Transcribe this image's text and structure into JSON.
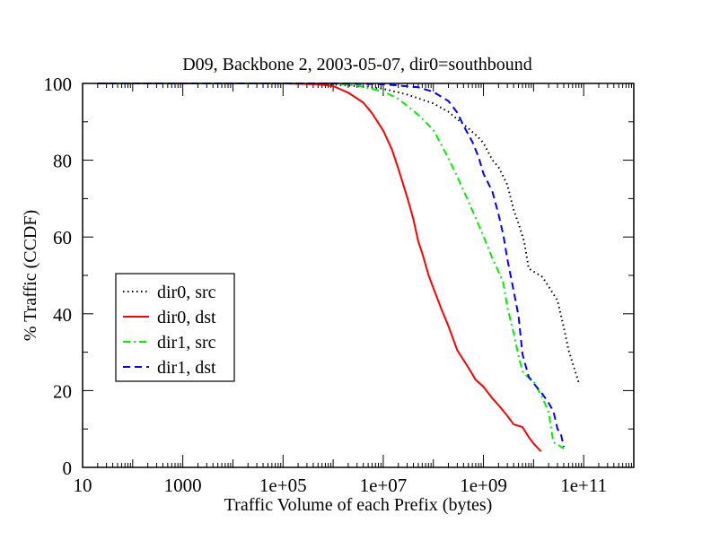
{
  "chart_data": {
    "type": "line",
    "title": "D09, Backbone 2, 2003-05-07, dir0=southbound",
    "xlabel": "Traffic Volume of each Prefix (bytes)",
    "ylabel": "% Traffic (CCDF)",
    "x_scale": "log",
    "xlim": [
      10,
      1000000000000.0
    ],
    "ylim": [
      0,
      100
    ],
    "x_ticks": [
      {
        "v": 10,
        "label": "10"
      },
      {
        "v": 1000,
        "label": "1000"
      },
      {
        "v": 100000,
        "label": "1e+05"
      },
      {
        "v": 10000000,
        "label": "1e+07"
      },
      {
        "v": 1000000000,
        "label": "1e+09"
      },
      {
        "v": 100000000000,
        "label": "1e+11"
      }
    ],
    "y_ticks": [
      {
        "v": 0,
        "label": "0"
      },
      {
        "v": 20,
        "label": "20"
      },
      {
        "v": 40,
        "label": "40"
      },
      {
        "v": 60,
        "label": "60"
      },
      {
        "v": 80,
        "label": "80"
      },
      {
        "v": 100,
        "label": "100"
      }
    ],
    "grid": false,
    "legend_position": "left-middle",
    "series": [
      {
        "name": "dir0, src",
        "color": "#000000",
        "dash": "dotted",
        "points": [
          [
            20,
            100
          ],
          [
            100000.0,
            100
          ],
          [
            1000000.0,
            99.7
          ],
          [
            3000000.0,
            99.3
          ],
          [
            10000000.0,
            98.6
          ],
          [
            30000000.0,
            97.1
          ],
          [
            100000000.0,
            94.8
          ],
          [
            200000000.0,
            92.6
          ],
          [
            500000000.0,
            88.3
          ],
          [
            800000000.0,
            85.9
          ],
          [
            1000000000.0,
            84.5
          ],
          [
            1500000000.0,
            80.1
          ],
          [
            2000000000.0,
            78.2
          ],
          [
            3000000000.0,
            73.6
          ],
          [
            4000000000.0,
            67.1
          ],
          [
            5000000000.0,
            63.5
          ],
          [
            6500000000.0,
            58.8
          ],
          [
            8000000000.0,
            51.8
          ],
          [
            15000000000.0,
            49.6
          ],
          [
            30000000000.0,
            43.5
          ],
          [
            40000000000.0,
            36.5
          ],
          [
            50000000000.0,
            30.5
          ],
          [
            80000000000.0,
            22
          ]
        ]
      },
      {
        "name": "dir0, dst",
        "color": "#ff0000",
        "dash": "solid",
        "points": [
          [
            20,
            100
          ],
          [
            100000.0,
            100
          ],
          [
            500000.0,
            99.8
          ],
          [
            1000000.0,
            99.3
          ],
          [
            2000000.0,
            97.6
          ],
          [
            4000000.0,
            95.0
          ],
          [
            6000000.0,
            92.2
          ],
          [
            10000000.0,
            87.7
          ],
          [
            15000000.0,
            82.7
          ],
          [
            20000000.0,
            77.8
          ],
          [
            30000000.0,
            70.4
          ],
          [
            40000000.0,
            64.6
          ],
          [
            50000000.0,
            58.8
          ],
          [
            60000000.0,
            55.8
          ],
          [
            80000000.0,
            50.1
          ],
          [
            100000000.0,
            46.7
          ],
          [
            150000000.0,
            40.7
          ],
          [
            200000000.0,
            36.8
          ],
          [
            300000000.0,
            30.5
          ],
          [
            500000000.0,
            26.0
          ],
          [
            700000000.0,
            22.8
          ],
          [
            1000000000.0,
            21.0
          ],
          [
            1500000000.0,
            18.0
          ],
          [
            2000000000.0,
            16.2
          ],
          [
            3000000000.0,
            13.4
          ],
          [
            4000000000.0,
            11.2
          ],
          [
            6000000000.0,
            10.5
          ],
          [
            8000000000.0,
            7.9
          ],
          [
            10000000000.0,
            6.2
          ],
          [
            14000000000.0,
            4.2
          ]
        ]
      },
      {
        "name": "dir1, src",
        "color": "#00ee00",
        "dash": "dashdot",
        "points": [
          [
            20,
            100
          ],
          [
            1000000.0,
            100
          ],
          [
            3000000.0,
            99.5
          ],
          [
            10000000.0,
            97.9
          ],
          [
            20000000.0,
            96.0
          ],
          [
            50000000.0,
            91.8
          ],
          [
            100000000.0,
            87.9
          ],
          [
            150000000.0,
            83.6
          ],
          [
            200000000.0,
            80.5
          ],
          [
            300000000.0,
            75.7
          ],
          [
            500000000.0,
            69.3
          ],
          [
            800000000.0,
            63.2
          ],
          [
            1000000000.0,
            60.2
          ],
          [
            1500000000.0,
            54.5
          ],
          [
            2000000000.0,
            51.0
          ],
          [
            2500000000.0,
            47.9
          ],
          [
            3000000000.0,
            41.7
          ],
          [
            4000000000.0,
            35.0
          ],
          [
            5000000000.0,
            29.1
          ],
          [
            6000000000.0,
            25.0
          ],
          [
            8000000000.0,
            23.3
          ],
          [
            10000000000.0,
            22.5
          ],
          [
            15000000000.0,
            18.1
          ],
          [
            20000000000.0,
            14.4
          ],
          [
            23000000000.0,
            9.2
          ],
          [
            25000000000.0,
            6.5
          ],
          [
            30000000000.0,
            6.0
          ],
          [
            40000000000.0,
            4.9
          ]
        ]
      },
      {
        "name": "dir1, dst",
        "color": "#0000ff",
        "dash": "dashed",
        "points": [
          [
            20,
            100
          ],
          [
            1000000.0,
            100
          ],
          [
            10000000.0,
            99.8
          ],
          [
            50000000.0,
            99.0
          ],
          [
            100000000.0,
            97.8
          ],
          [
            200000000.0,
            95.4
          ],
          [
            300000000.0,
            92.4
          ],
          [
            400000000.0,
            89.0
          ],
          [
            600000000.0,
            84.8
          ],
          [
            800000000.0,
            80.8
          ],
          [
            1000000000.0,
            76.5
          ],
          [
            1500000000.0,
            71.9
          ],
          [
            2000000000.0,
            65.9
          ],
          [
            2500000000.0,
            60.4
          ],
          [
            3000000000.0,
            54.2
          ],
          [
            4000000000.0,
            46.0
          ],
          [
            5000000000.0,
            39.5
          ],
          [
            6000000000.0,
            29.5
          ],
          [
            8000000000.0,
            23.6
          ],
          [
            10000000000.0,
            21.9
          ],
          [
            15000000000.0,
            19.1
          ],
          [
            20000000000.0,
            16.8
          ],
          [
            25000000000.0,
            14.5
          ],
          [
            30000000000.0,
            10.0
          ],
          [
            35000000000.0,
            8.8
          ],
          [
            40000000000.0,
            5.3
          ]
        ]
      }
    ]
  }
}
